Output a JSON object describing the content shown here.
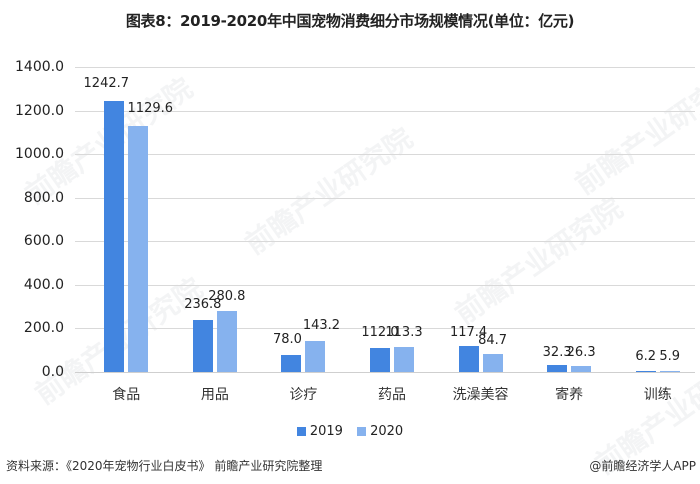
{
  "title": "图表8：2019-2020年中国宠物消费细分市场规模情况(单位：亿元)",
  "colors": {
    "2019": "#4285e0",
    "2020": "#86b2ee",
    "grid": "#d9d9d9"
  },
  "y_ticks": [
    "1400.0",
    "1200.0",
    "1000.0",
    "800.0",
    "600.0",
    "400.0",
    "200.0",
    "0.0"
  ],
  "legend": {
    "series1": "2019",
    "series2": "2020"
  },
  "footer": {
    "source": "资料来源：《2020年宠物行业白皮书》 前瞻产业研究院整理",
    "credit": "@前瞻经济学人APP"
  },
  "watermark": "前瞻产业研究院",
  "chart_data": {
    "type": "bar",
    "title": "图表8：2019-2020年中国宠物消费细分市场规模情况(单位：亿元)",
    "xlabel": "",
    "ylabel": "亿元",
    "ylim": [
      0,
      1400
    ],
    "y_ticks": [
      0,
      200,
      400,
      600,
      800,
      1000,
      1200,
      1400
    ],
    "grid": true,
    "legend_position": "bottom",
    "categories": [
      "食品",
      "用品",
      "诊疗",
      "药品",
      "洗澡美容",
      "寄养",
      "训练"
    ],
    "series": [
      {
        "name": "2019",
        "values": [
          1242.7,
          236.8,
          78.0,
          112.0,
          117.4,
          32.3,
          6.2
        ],
        "labels": [
          "1242.7",
          "236.8",
          "78.0",
          "112.0",
          "117.4",
          "32.3",
          "6.2"
        ]
      },
      {
        "name": "2020",
        "values": [
          1129.6,
          280.8,
          143.2,
          113.3,
          84.7,
          26.3,
          5.9
        ],
        "labels": [
          "1129.6",
          "280.8",
          "143.2",
          "113.3",
          "84.7",
          "26.3",
          "5.9"
        ]
      }
    ]
  }
}
